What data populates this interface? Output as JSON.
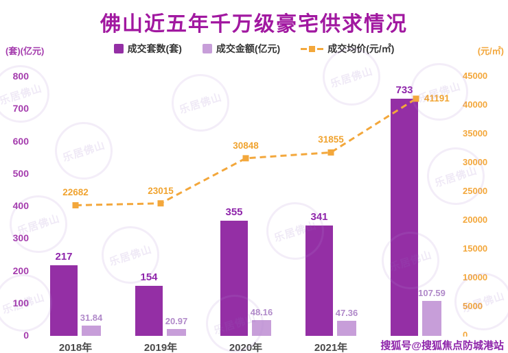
{
  "title": "佛山近五年千万级豪宅供求情况",
  "axes": {
    "left_unit": "(套)(亿元)",
    "right_unit": "(元/㎡)",
    "left_ticks": [
      0,
      100,
      200,
      300,
      400,
      500,
      600,
      700,
      800
    ],
    "right_ticks": [
      0,
      5000,
      10000,
      15000,
      20000,
      25000,
      30000,
      35000,
      40000,
      45000
    ]
  },
  "legend": [
    {
      "label": "成交套数(套)",
      "marker": "bar",
      "color": "#942FA5"
    },
    {
      "label": "成交金额(亿元)",
      "marker": "bar",
      "color": "#C79ED9"
    },
    {
      "label": "成交均价(元/㎡)",
      "marker": "line",
      "color": "#F3A73B"
    }
  ],
  "colors": {
    "bar_count": "#942FA5",
    "bar_amount": "#C79ED9",
    "line_price": "#F3A73B",
    "count_label": "#8E24AA",
    "amount_label": "#B089C9",
    "price_label": "#F0A32F"
  },
  "chart_data": {
    "type": "bar",
    "categories": [
      "2018年",
      "2019年",
      "2020年",
      "2021年",
      "2022年"
    ],
    "series": [
      {
        "name": "成交套数(套)",
        "kind": "bar",
        "axis": "left",
        "values": [
          217,
          154,
          355,
          341,
          733
        ]
      },
      {
        "name": "成交金额(亿元)",
        "kind": "bar",
        "axis": "left",
        "values": [
          31.84,
          20.97,
          48.16,
          47.36,
          107.59
        ]
      },
      {
        "name": "成交均价(元/㎡)",
        "kind": "line",
        "axis": "right",
        "values": [
          22682,
          23015,
          30848,
          31855,
          41191
        ]
      }
    ],
    "left_axis": {
      "min": 0,
      "max": 800,
      "step": 100
    },
    "right_axis": {
      "min": 0,
      "max": 45000,
      "step": 5000
    },
    "grid": false,
    "legend_position": "top"
  },
  "watermark": {
    "leju": "乐居佛山",
    "sohu": "搜狐号@搜狐焦点防城港站"
  }
}
